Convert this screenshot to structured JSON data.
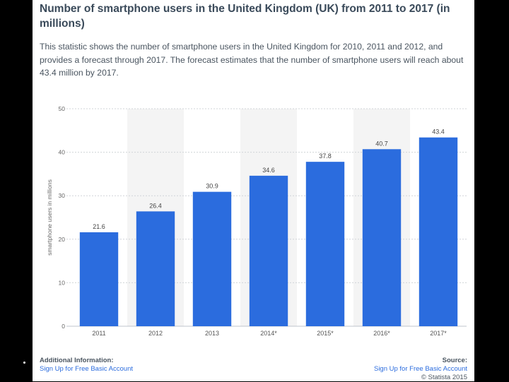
{
  "page": {
    "title": "Number of smartphone users in the United Kingdom (UK) from 2011 to 2017 (in millions)",
    "description": "This statistic shows the number of smartphone users in the United Kingdom for 2010, 2011 and 2012, and provides a forecast through 2017. The forecast estimates that the number of smartphone users will reach about 43.4 million by 2017."
  },
  "chart_data": {
    "type": "bar",
    "title": "Number of smartphone users in the United Kingdom (UK) from 2011 to 2017 (in millions)",
    "xlabel": "",
    "ylabel": "smartphone users in millions",
    "ylim": [
      0,
      50
    ],
    "yticks": [
      0,
      10,
      20,
      30,
      40,
      50
    ],
    "categories": [
      "2011",
      "2012",
      "2013",
      "2014*",
      "2015*",
      "2016*",
      "2017*"
    ],
    "values": [
      21.6,
      26.4,
      30.9,
      34.6,
      37.8,
      40.7,
      43.4
    ],
    "value_labels": [
      "21.6",
      "26.4",
      "30.9",
      "34.6",
      "37.8",
      "40.7",
      "43.4"
    ],
    "bar_color": "#2b6cde",
    "grid": true
  },
  "footer": {
    "left_heading": "Additional Information:",
    "left_link": "Sign Up for Free Basic Account",
    "right_heading": "Source:",
    "right_link": "Sign Up for Free Basic Account",
    "copyright": "© Statista 2015"
  }
}
